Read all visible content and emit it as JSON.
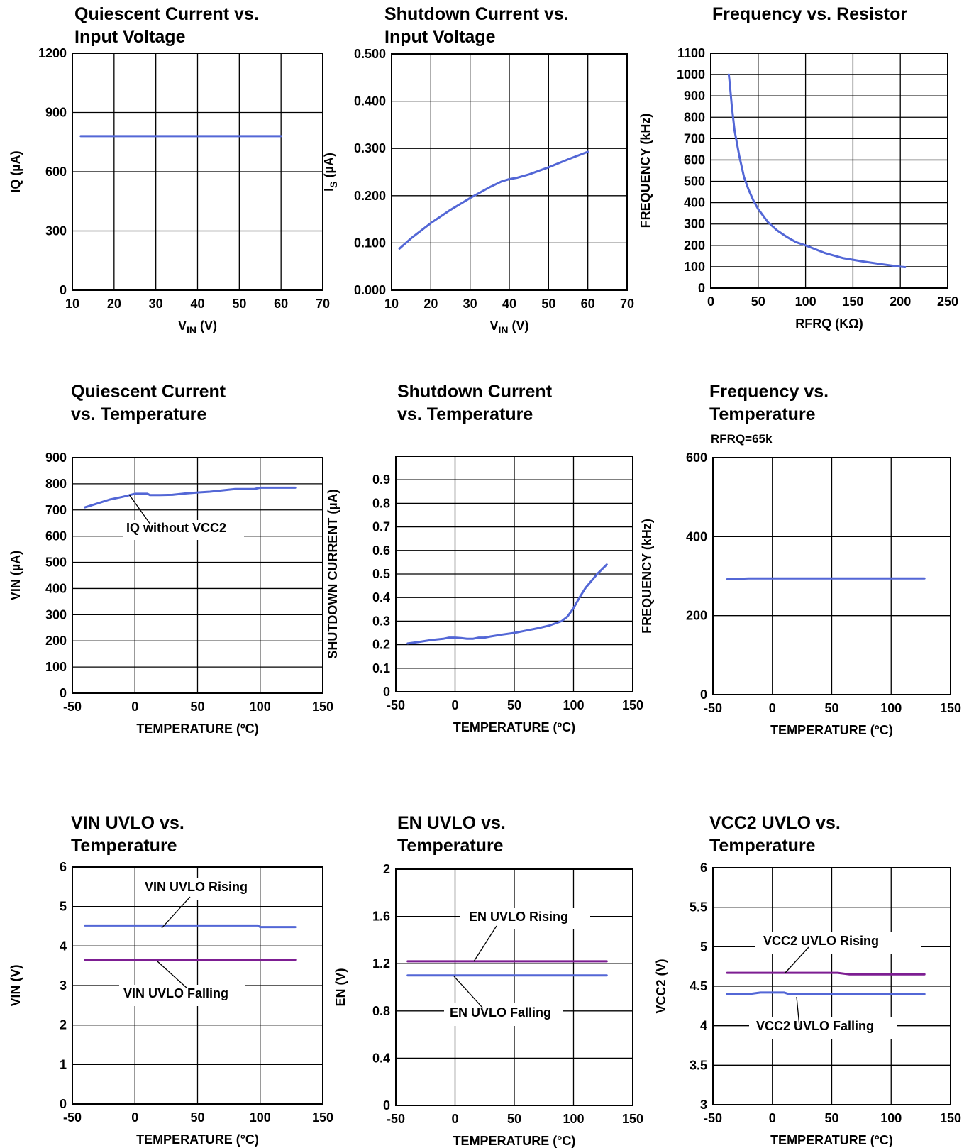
{
  "colors": {
    "blue": "#5367d6",
    "purple": "#7d1e92",
    "grid": "#000000"
  },
  "chart_data": [
    {
      "type": "line",
      "title": [
        "Quiescent Current vs.",
        "Input Voltage"
      ],
      "xlabel": "V",
      "xlabel_sub": "IN",
      "xlabel_suffix": " (V)",
      "ylabel": "IQ (µA)",
      "xlim": [
        10,
        70
      ],
      "ylim": [
        0,
        1200
      ],
      "xticks": [
        10,
        20,
        30,
        40,
        50,
        60,
        70
      ],
      "yticks": [
        0,
        300,
        600,
        900,
        1200
      ],
      "series": [
        {
          "color": "blue",
          "x": [
            12,
            60
          ],
          "y": [
            780,
            780
          ]
        }
      ]
    },
    {
      "type": "line",
      "title": [
        "Shutdown Current vs.",
        "Input Voltage"
      ],
      "xlabel": "V",
      "xlabel_sub": "IN",
      "xlabel_suffix": " (V)",
      "ylabel": "I",
      "ylabel_sub": "S",
      "ylabel_suffix": " (µA)",
      "xlim": [
        10,
        70
      ],
      "ylim": [
        0,
        0.5
      ],
      "xticks": [
        10,
        20,
        30,
        40,
        50,
        60,
        70
      ],
      "yticks": [
        0,
        0.1,
        0.2,
        0.3,
        0.4,
        0.5
      ],
      "ytick_labels": [
        "0.000",
        "0.100",
        "0.200",
        "0.300",
        "0.400",
        "0.500"
      ],
      "series": [
        {
          "color": "blue",
          "x": [
            12,
            15,
            20,
            25,
            30,
            35,
            38,
            40,
            42,
            45,
            50,
            55,
            60
          ],
          "y": [
            0.088,
            0.11,
            0.142,
            0.17,
            0.195,
            0.218,
            0.23,
            0.235,
            0.238,
            0.245,
            0.26,
            0.277,
            0.293
          ]
        }
      ]
    },
    {
      "type": "line",
      "title": [
        "Frequency vs. Resistor"
      ],
      "xlabel": "RFRQ (KΩ)",
      "ylabel": "FREQUENCY (kHz)",
      "xlim": [
        0,
        250
      ],
      "ylim": [
        0,
        1100
      ],
      "xticks": [
        0,
        50,
        100,
        150,
        200,
        250
      ],
      "yticks": [
        0,
        100,
        200,
        300,
        400,
        500,
        600,
        700,
        800,
        900,
        1000,
        1100
      ],
      "series": [
        {
          "color": "blue",
          "x": [
            19,
            20,
            22,
            25,
            30,
            35,
            40,
            45,
            50,
            60,
            70,
            80,
            90,
            100,
            120,
            140,
            160,
            180,
            200,
            205
          ],
          "y": [
            1000,
            960,
            860,
            740,
            620,
            520,
            460,
            410,
            370,
            310,
            270,
            240,
            215,
            200,
            165,
            140,
            125,
            112,
            100,
            98
          ]
        }
      ]
    },
    {
      "type": "line",
      "title": [
        "Quiescent Current",
        "vs. Temperature"
      ],
      "xlabel": "TEMPERATURE (ºC)",
      "ylabel": "VIN (µA)",
      "xlim": [
        -50,
        150
      ],
      "ylim": [
        0,
        900
      ],
      "xticks": [
        -50,
        0,
        50,
        100,
        150
      ],
      "yticks": [
        0,
        100,
        200,
        300,
        400,
        500,
        600,
        700,
        800,
        900
      ],
      "series": [
        {
          "color": "blue",
          "x": [
            -40,
            -30,
            -20,
            -10,
            0,
            10,
            12,
            20,
            30,
            40,
            50,
            60,
            70,
            80,
            90,
            95,
            100,
            110,
            120,
            128
          ],
          "y": [
            710,
            725,
            740,
            750,
            762,
            762,
            757,
            757,
            758,
            763,
            767,
            770,
            775,
            780,
            780,
            780,
            785,
            785,
            785,
            785
          ]
        }
      ],
      "annotations": [
        {
          "text": "IQ without VCC2"
        }
      ]
    },
    {
      "type": "line",
      "title": [
        "Shutdown Current",
        "vs. Temperature"
      ],
      "xlabel": "TEMPERATURE (ºC)",
      "ylabel": "SHUTDOWN CURRENT (µA)",
      "xlim": [
        -50,
        150
      ],
      "ylim": [
        0,
        1.0
      ],
      "xticks": [
        -50,
        0,
        50,
        100,
        150
      ],
      "yticks": [
        0,
        0.1,
        0.2,
        0.3,
        0.4,
        0.5,
        0.6,
        0.7,
        0.8,
        0.9
      ],
      "ytick_labels": [
        "0",
        "0.1",
        "0.2",
        "0.3",
        "0.4",
        "0.5",
        "0.6",
        "0.7",
        "0.8",
        "0.9"
      ],
      "series": [
        {
          "color": "blue",
          "x": [
            -40,
            -30,
            -20,
            -10,
            -5,
            0,
            5,
            10,
            15,
            20,
            25,
            30,
            40,
            50,
            60,
            70,
            80,
            90,
            95,
            100,
            105,
            110,
            120,
            128
          ],
          "y": [
            0.205,
            0.212,
            0.22,
            0.225,
            0.23,
            0.23,
            0.228,
            0.225,
            0.225,
            0.23,
            0.23,
            0.235,
            0.243,
            0.25,
            0.26,
            0.27,
            0.282,
            0.3,
            0.32,
            0.355,
            0.4,
            0.44,
            0.5,
            0.54
          ]
        }
      ]
    },
    {
      "type": "line",
      "title": [
        "Frequency vs.",
        "Temperature"
      ],
      "subtitle": "RFRQ=65k",
      "xlabel": "TEMPERATURE (°C)",
      "ylabel": "FREQUENCY (kHz)",
      "xlim": [
        -50,
        150
      ],
      "ylim": [
        0,
        600
      ],
      "xticks": [
        -50,
        0,
        50,
        100,
        150
      ],
      "yticks": [
        0,
        200,
        400,
        600
      ],
      "series": [
        {
          "color": "blue",
          "x": [
            -38,
            -20,
            0,
            20,
            50,
            80,
            110,
            128
          ],
          "y": [
            292,
            294,
            294,
            294,
            294,
            294,
            294,
            294
          ]
        }
      ]
    },
    {
      "type": "line",
      "title": [
        "VIN UVLO vs.",
        "Temperature"
      ],
      "xlabel": "TEMPERATURE (°C)",
      "ylabel": "VIN (V)",
      "xlim": [
        -50,
        150
      ],
      "ylim": [
        0,
        6
      ],
      "xticks": [
        -50,
        0,
        50,
        100,
        150
      ],
      "yticks": [
        0,
        1,
        2,
        3,
        4,
        5,
        6
      ],
      "series": [
        {
          "name": "VIN UVLO Rising",
          "color": "blue",
          "x": [
            -40,
            0,
            50,
            98,
            100,
            128
          ],
          "y": [
            4.52,
            4.52,
            4.52,
            4.52,
            4.48,
            4.48
          ]
        },
        {
          "name": "VIN UVLO Falling",
          "color": "purple",
          "x": [
            -40,
            0,
            50,
            100,
            128
          ],
          "y": [
            3.65,
            3.65,
            3.65,
            3.65,
            3.65
          ]
        }
      ]
    },
    {
      "type": "line",
      "title": [
        "EN UVLO vs.",
        "Temperature"
      ],
      "xlabel": "TEMPERATURE (°C)",
      "ylabel": "EN (V)",
      "xlim": [
        -50,
        150
      ],
      "ylim": [
        0,
        2
      ],
      "xticks": [
        -50,
        0,
        50,
        100,
        150
      ],
      "yticks": [
        0,
        0.4,
        0.8,
        1.2,
        1.6,
        2
      ],
      "ytick_labels": [
        "0",
        "0.4",
        "0.8",
        "1.2",
        "1.6",
        "2"
      ],
      "series": [
        {
          "name": "EN UVLO Rising",
          "color": "purple",
          "x": [
            -40,
            0,
            50,
            100,
            128
          ],
          "y": [
            1.22,
            1.22,
            1.22,
            1.22,
            1.22
          ]
        },
        {
          "name": "EN UVLO Falling",
          "color": "blue",
          "x": [
            -40,
            0,
            50,
            100,
            128
          ],
          "y": [
            1.1,
            1.1,
            1.1,
            1.1,
            1.1
          ]
        }
      ]
    },
    {
      "type": "line",
      "title": [
        "VCC2 UVLO vs.",
        "Temperature"
      ],
      "xlabel": "TEMPERATURE (°C)",
      "ylabel": "VCC2 (V)",
      "xlim": [
        -50,
        150
      ],
      "ylim": [
        3,
        6
      ],
      "xticks": [
        -50,
        0,
        50,
        100,
        150
      ],
      "yticks": [
        3,
        3.5,
        4,
        4.5,
        5,
        5.5,
        6
      ],
      "ytick_labels": [
        "3",
        "3.5",
        "4",
        "4.5",
        "5",
        "5.5",
        "6"
      ],
      "series": [
        {
          "name": "VCC2 UVLO Rising",
          "color": "purple",
          "x": [
            -38,
            0,
            50,
            55,
            65,
            100,
            128
          ],
          "y": [
            4.67,
            4.67,
            4.67,
            4.67,
            4.65,
            4.65,
            4.65
          ]
        },
        {
          "name": "VCC2 UVLO Falling",
          "color": "blue",
          "x": [
            -38,
            -20,
            -10,
            0,
            10,
            14,
            20,
            50,
            100,
            128
          ],
          "y": [
            4.4,
            4.4,
            4.42,
            4.42,
            4.42,
            4.4,
            4.4,
            4.4,
            4.4,
            4.4
          ]
        }
      ]
    }
  ]
}
